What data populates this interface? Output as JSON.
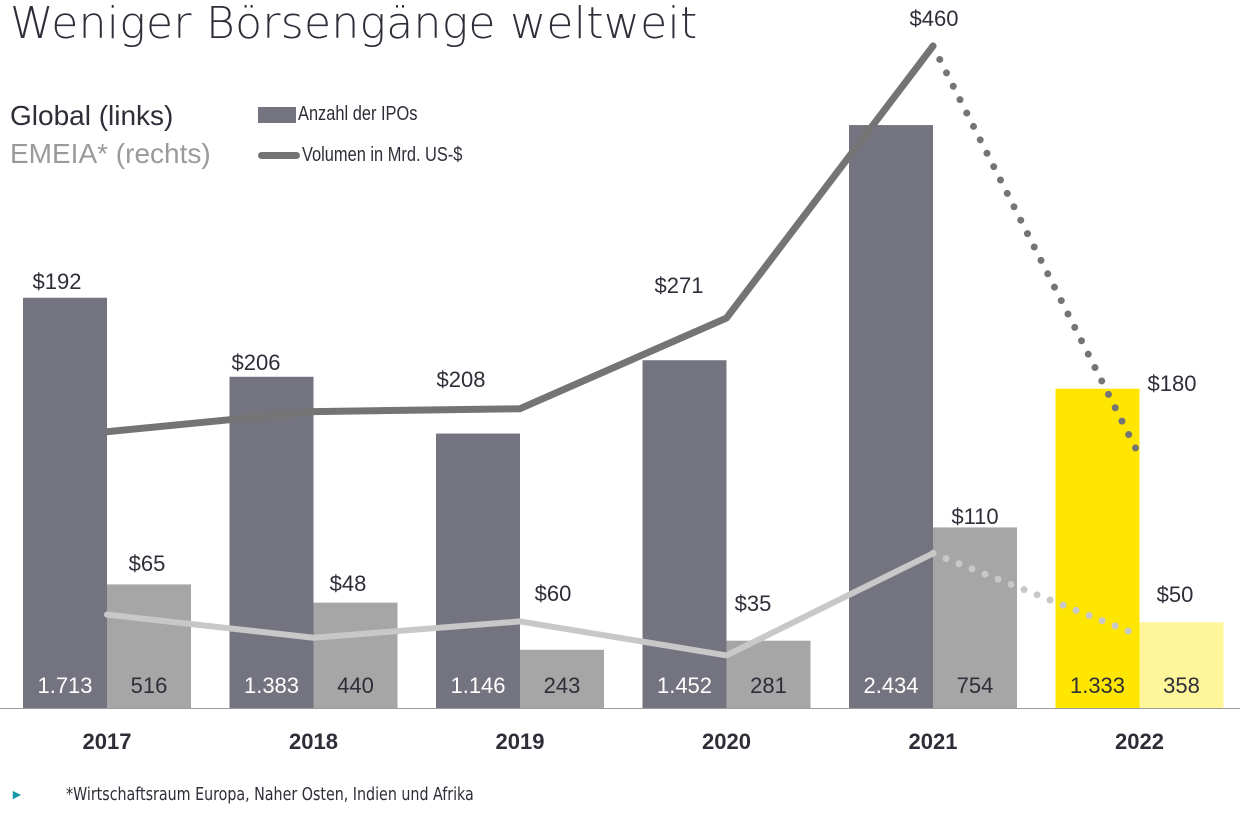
{
  "title": "Weniger Börsengänge weltweit",
  "subtitle_global": "Global (links)",
  "subtitle_emeia": "EMEIA* (rechts)",
  "legend": {
    "bars": "Anzahl der IPOs",
    "line": "Volumen in Mrd. US-$"
  },
  "footnote": "*Wirtschaftsraum Europa, Naher Osten, Indien und Afrika",
  "colors": {
    "global_bar": "#747480",
    "emeia_bar": "#a6a6a6",
    "global_line": "#747474",
    "emeia_line": "#c8c8c8",
    "highlight_global": "#ffe600",
    "highlight_emeia": "#fff59a",
    "footnote_bullet": "#1a9aa6"
  },
  "chart_data": {
    "type": "bar",
    "categories": [
      "2017",
      "2018",
      "2019",
      "2020",
      "2021",
      "2022"
    ],
    "series": [
      {
        "name": "Global – Anzahl der IPOs",
        "kind": "bar",
        "group": "global",
        "values": [
          1713,
          1383,
          1146,
          1452,
          2434,
          1333
        ],
        "labels": [
          "1.713",
          "1.383",
          "1.146",
          "1.452",
          "2.434",
          "1.333"
        ]
      },
      {
        "name": "EMEIA – Anzahl der IPOs",
        "kind": "bar",
        "group": "emeia",
        "values": [
          516,
          440,
          243,
          281,
          754,
          358
        ],
        "labels": [
          "516",
          "440",
          "243",
          "281",
          "754",
          "358"
        ]
      },
      {
        "name": "Global – Volumen in Mrd. US-$",
        "kind": "line",
        "group": "global",
        "values": [
          192,
          206,
          208,
          271,
          460,
          180
        ],
        "labels": [
          "$192",
          "$206",
          "$208",
          "$271",
          "$460",
          "$180"
        ]
      },
      {
        "name": "EMEIA – Volumen in Mrd. US-$",
        "kind": "line",
        "group": "emeia",
        "values": [
          65,
          48,
          60,
          35,
          110,
          50
        ],
        "labels": [
          "$65",
          "$48",
          "$60",
          "$35",
          "$110",
          "$50"
        ]
      }
    ],
    "highlight_category": "2022",
    "dotted_segment": "2021-2022",
    "legend_position": "top-left"
  }
}
